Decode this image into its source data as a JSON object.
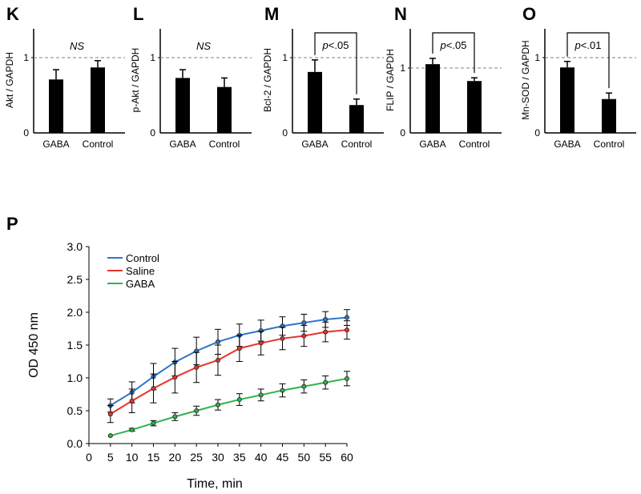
{
  "colors": {
    "bar": "#000000",
    "reference_line": "#808080",
    "control": "#2e75c8",
    "saline": "#e8322a",
    "gaba": "#2eb34a"
  },
  "chart_data": [
    {
      "panel": "K",
      "type": "bar",
      "ylabel": "Akt / GAPDH",
      "categories": [
        "GABA",
        "Control"
      ],
      "values": [
        0.71,
        0.87
      ],
      "errors": [
        0.13,
        0.09
      ],
      "ylim": [
        0,
        1.4
      ],
      "yticks": [
        "0",
        "1"
      ],
      "reference_line": 1,
      "annotation": "NS"
    },
    {
      "panel": "L",
      "type": "bar",
      "ylabel": "p-Akt / GAPDH",
      "categories": [
        "GABA",
        "Control"
      ],
      "values": [
        0.73,
        0.61
      ],
      "errors": [
        0.11,
        0.12
      ],
      "ylim": [
        0,
        1.4
      ],
      "yticks": [
        "0",
        "1"
      ],
      "reference_line": 1,
      "annotation": "NS"
    },
    {
      "panel": "M",
      "type": "bar",
      "ylabel": "Bcl-2 / GAPDH",
      "categories": [
        "GABA",
        "Control"
      ],
      "values": [
        0.81,
        0.37
      ],
      "errors": [
        0.16,
        0.08
      ],
      "ylim": [
        0,
        1.4
      ],
      "yticks": [
        "0",
        "1"
      ],
      "reference_line": 1,
      "bracket": {
        "p_label": "p",
        "p_value": "<.05"
      }
    },
    {
      "panel": "N",
      "type": "bar",
      "ylabel": "FLIP / GAPDH",
      "categories": [
        "GABA",
        "Control"
      ],
      "values": [
        1.06,
        0.8
      ],
      "errors": [
        0.09,
        0.05
      ],
      "ylim": [
        0,
        1.4
      ],
      "yticks": [
        "0",
        "1"
      ],
      "reference_line": 1,
      "bracket": {
        "p_label": "p",
        "p_value": "<.05"
      }
    },
    {
      "panel": "O",
      "type": "bar",
      "ylabel": "Mn-SOD / GAPDH",
      "categories": [
        "GABA",
        "Control"
      ],
      "values": [
        0.87,
        0.45
      ],
      "errors": [
        0.08,
        0.08
      ],
      "ylim": [
        0,
        1.4
      ],
      "yticks": [
        "0",
        "1"
      ],
      "reference_line": 1,
      "bracket": {
        "p_label": "p",
        "p_value": "<.01"
      }
    },
    {
      "panel": "P",
      "type": "line",
      "xlabel": "Time, min",
      "ylabel": "OD 450 nm",
      "xlim": [
        0,
        60
      ],
      "ylim": [
        0,
        3
      ],
      "xticks": [
        0,
        5,
        10,
        15,
        20,
        25,
        30,
        35,
        40,
        45,
        50,
        55,
        60
      ],
      "yticks": [
        "0.0",
        "0.5",
        "1.0",
        "1.5",
        "2.0",
        "2.5",
        "3.0"
      ],
      "legend_position": "top-left",
      "x": [
        5,
        10,
        15,
        20,
        25,
        30,
        35,
        40,
        45,
        50,
        55,
        60
      ],
      "series": [
        {
          "name": "Control",
          "color": "#2e75c8",
          "values": [
            0.58,
            0.78,
            1.02,
            1.24,
            1.41,
            1.55,
            1.65,
            1.72,
            1.79,
            1.84,
            1.89,
            1.92
          ],
          "errors": [
            0.1,
            0.16,
            0.2,
            0.21,
            0.21,
            0.19,
            0.17,
            0.16,
            0.14,
            0.13,
            0.12,
            0.12
          ]
        },
        {
          "name": "Saline",
          "color": "#e8322a",
          "values": [
            0.45,
            0.65,
            0.84,
            1.01,
            1.16,
            1.27,
            1.45,
            1.53,
            1.6,
            1.64,
            1.7,
            1.73
          ],
          "errors": [
            0.13,
            0.18,
            0.22,
            0.24,
            0.23,
            0.23,
            0.2,
            0.18,
            0.17,
            0.16,
            0.15,
            0.14
          ]
        },
        {
          "name": "GABA",
          "color": "#2eb34a",
          "values": [
            0.12,
            0.21,
            0.31,
            0.41,
            0.5,
            0.59,
            0.67,
            0.74,
            0.81,
            0.87,
            0.93,
            0.99
          ],
          "errors": [
            0.0,
            0.02,
            0.04,
            0.06,
            0.07,
            0.08,
            0.09,
            0.09,
            0.1,
            0.1,
            0.1,
            0.11
          ]
        }
      ]
    }
  ]
}
